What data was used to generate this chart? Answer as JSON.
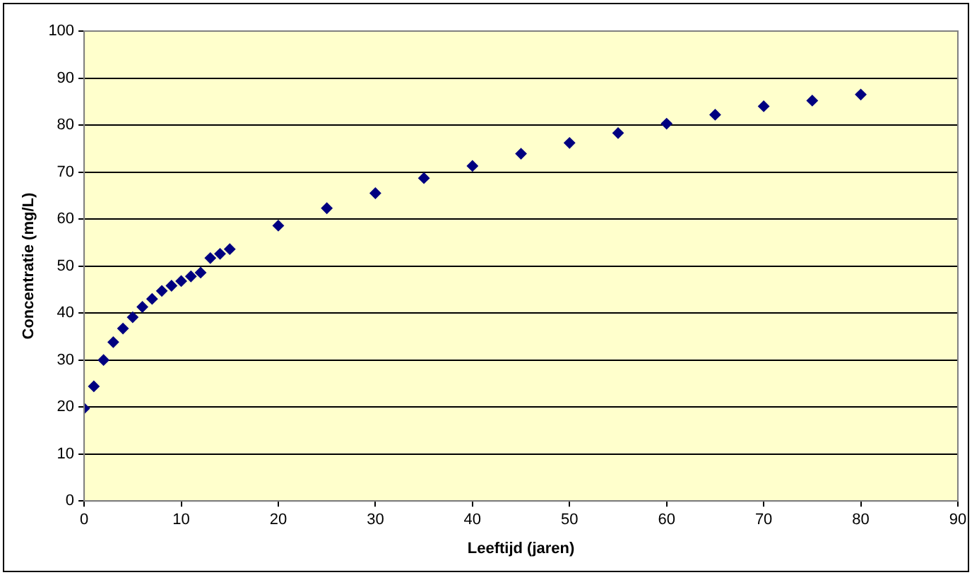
{
  "chart_data": {
    "type": "scatter",
    "xlabel": "Leeftijd (jaren)",
    "ylabel": "Concentratie (mg/L)",
    "x": [
      0,
      1,
      2,
      3,
      4,
      5,
      6,
      7,
      8,
      9,
      10,
      11,
      12,
      13,
      14,
      15,
      20,
      25,
      30,
      35,
      40,
      45,
      50,
      55,
      60,
      65,
      70,
      75,
      80
    ],
    "series": [
      {
        "color": "#000080",
        "values": [
          19.7,
          24.4,
          30,
          33.8,
          36.7,
          39.1,
          41.3,
          43,
          44.7,
          45.8,
          46.8,
          47.8,
          48.6,
          51.7,
          52.6,
          53.6,
          58.6,
          62.3,
          65.5,
          68.7,
          71.3,
          73.9,
          76.2,
          78.3,
          80.3,
          82.2,
          84,
          85.2,
          86.5
        ]
      }
    ],
    "xlim": [
      0,
      90
    ],
    "xticks": [
      0,
      10,
      20,
      30,
      40,
      50,
      60,
      70,
      80,
      90
    ],
    "ylim": [
      0,
      100
    ],
    "yticks": [
      0,
      10,
      20,
      30,
      40,
      50,
      60,
      70,
      80,
      90,
      100
    ],
    "grid": "y",
    "legend": false,
    "marker": "diamond"
  }
}
